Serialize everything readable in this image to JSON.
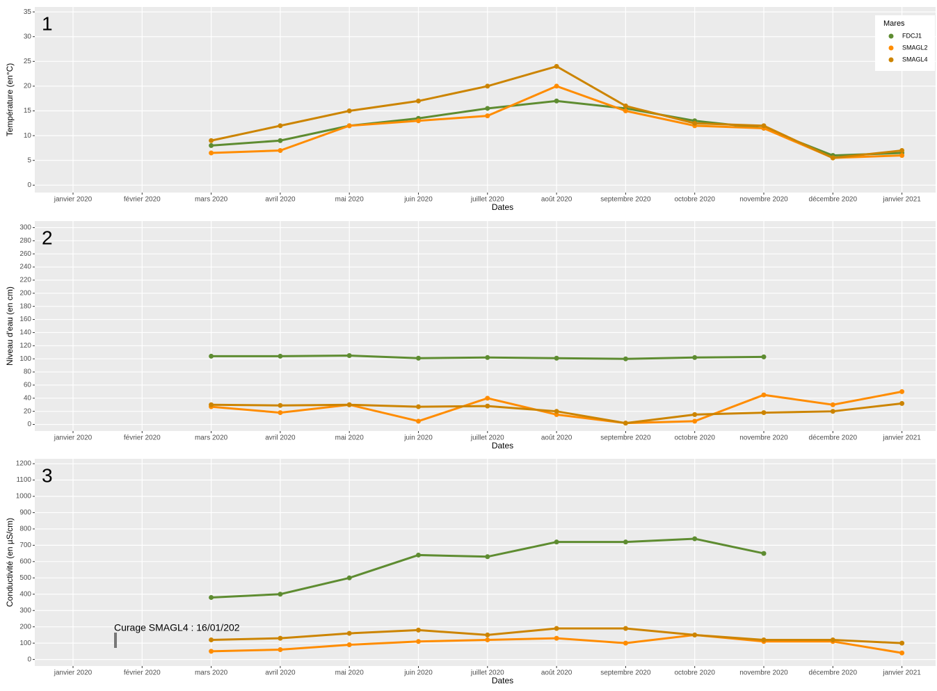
{
  "chart_data": [
    {
      "type": "line",
      "label": "1",
      "y_label": "Température (en°C)",
      "x_label": "Dates",
      "categories": [
        "janvier 2020",
        "février 2020",
        "mars 2020",
        "avril 2020",
        "mai 2020",
        "juin 2020",
        "juillet 2020",
        "août 2020",
        "septembre 2020",
        "octobre 2020",
        "novembre 2020",
        "décembre 2020",
        "janvier 2021"
      ],
      "ylim": [
        -1.5,
        36
      ],
      "yticks": [
        0,
        5,
        10,
        15,
        20,
        25,
        30,
        35
      ],
      "grid": true,
      "legend": {
        "title": "Mares",
        "position": "top-right"
      },
      "series": [
        {
          "name": "FDCJ1",
          "color": "#5e8c31",
          "values": [
            null,
            null,
            8,
            9,
            12,
            13.5,
            15.5,
            17,
            15.5,
            13,
            11.5,
            6,
            6.5
          ]
        },
        {
          "name": "SMAGL2",
          "color": "#ff8c00",
          "values": [
            null,
            null,
            6.5,
            7,
            12,
            13,
            14,
            20,
            15,
            12,
            11.5,
            5.5,
            6
          ]
        },
        {
          "name": "SMAGL4",
          "color": "#cc8400",
          "values": [
            null,
            null,
            9,
            12,
            15,
            17,
            20,
            24,
            16,
            12.5,
            12,
            5.5,
            7
          ]
        }
      ]
    },
    {
      "type": "line",
      "label": "2",
      "y_label": "Niveau d'eau (en cm)",
      "x_label": "Dates",
      "categories": [
        "janvier 2020",
        "février 2020",
        "mars 2020",
        "avril 2020",
        "mai 2020",
        "juin 2020",
        "juillet 2020",
        "août 2020",
        "septembre 2020",
        "octobre 2020",
        "novembre 2020",
        "décembre 2020",
        "janvier 2021"
      ],
      "ylim": [
        -10,
        310
      ],
      "yticks": [
        0,
        20,
        40,
        60,
        80,
        100,
        120,
        140,
        160,
        180,
        200,
        220,
        240,
        260,
        280,
        300
      ],
      "grid": true,
      "series": [
        {
          "color": "#5e8c31",
          "values": [
            null,
            null,
            104,
            104,
            105,
            101,
            102,
            101,
            100,
            102,
            103,
            null,
            null
          ]
        },
        {
          "color": "#ff8c00",
          "values": [
            null,
            null,
            27,
            18,
            30,
            5,
            40,
            15,
            2,
            5,
            45,
            30,
            50
          ]
        },
        {
          "color": "#cc8400",
          "values": [
            null,
            null,
            30,
            29,
            30,
            27,
            28,
            20,
            2,
            15,
            18,
            20,
            32
          ]
        }
      ]
    },
    {
      "type": "line",
      "label": "3",
      "y_label": "Conductivité (en µS/cm)",
      "x_label": "Dates",
      "categories": [
        "janvier 2020",
        "février 2020",
        "mars 2020",
        "avril 2020",
        "mai 2020",
        "juin 2020",
        "juillet 2020",
        "août 2020",
        "septembre 2020",
        "octobre 2020",
        "novembre 2020",
        "décembre 2020",
        "janvier 2021"
      ],
      "ylim": [
        -40,
        1230
      ],
      "yticks": [
        0,
        100,
        200,
        300,
        400,
        500,
        600,
        700,
        800,
        900,
        1000,
        1100,
        1200
      ],
      "grid": true,
      "annotation": "Curage SMAGL4 : 16/01/202",
      "series": [
        {
          "color": "#5e8c31",
          "values": [
            null,
            null,
            380,
            400,
            500,
            640,
            630,
            720,
            720,
            740,
            650,
            null,
            null
          ]
        },
        {
          "color": "#ff8c00",
          "values": [
            null,
            null,
            50,
            60,
            90,
            110,
            120,
            130,
            100,
            150,
            110,
            110,
            40
          ]
        },
        {
          "color": "#cc8400",
          "values": [
            null,
            null,
            120,
            130,
            160,
            180,
            150,
            190,
            190,
            150,
            120,
            120,
            100
          ]
        }
      ]
    }
  ]
}
